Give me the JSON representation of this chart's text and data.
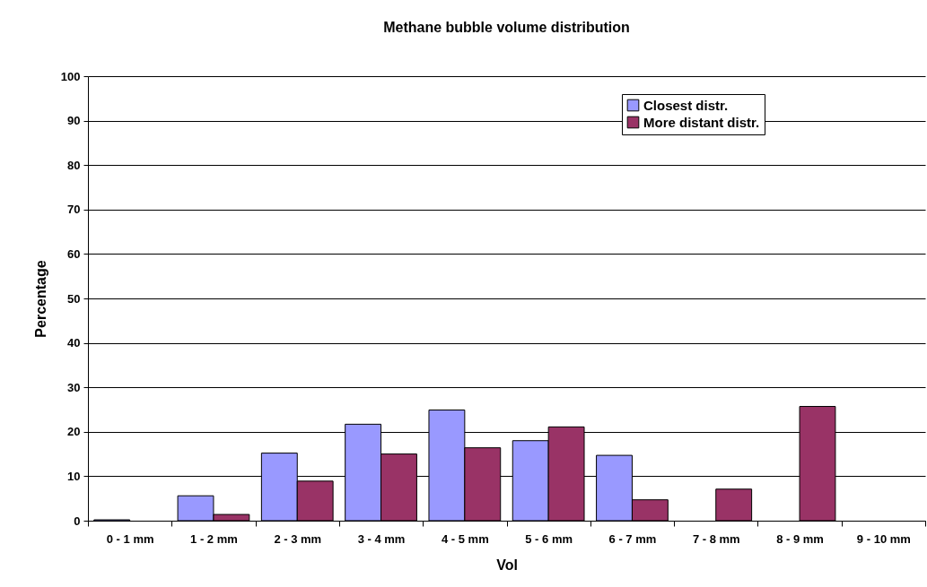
{
  "chart_data": {
    "type": "bar",
    "title": "Methane bubble volume distribution",
    "xlabel": "Vol",
    "ylabel": "Percentage",
    "categories": [
      "0 - 1 mm",
      "1 - 2 mm",
      "2 - 3 mm",
      "3 - 4 mm",
      "4 - 5 mm",
      "5 - 6 mm",
      "6 - 7 mm",
      "7 - 8 mm",
      "8 - 9 mm",
      "9 - 10 mm"
    ],
    "series": [
      {
        "name": "Closest distr.",
        "color": "#9999ff",
        "values": [
          0.2,
          5.6,
          15.2,
          21.7,
          24.9,
          18.0,
          14.7,
          null,
          null,
          null
        ]
      },
      {
        "name": "More distant distr.",
        "color": "#993366",
        "values": [
          null,
          1.4,
          8.9,
          15.0,
          16.4,
          21.1,
          4.7,
          7.1,
          25.7,
          null
        ]
      }
    ],
    "ylim": [
      0,
      100
    ],
    "yticks": [
      0,
      10,
      20,
      30,
      40,
      50,
      60,
      70,
      80,
      90,
      100
    ],
    "grid": "y",
    "legend": "top right"
  }
}
